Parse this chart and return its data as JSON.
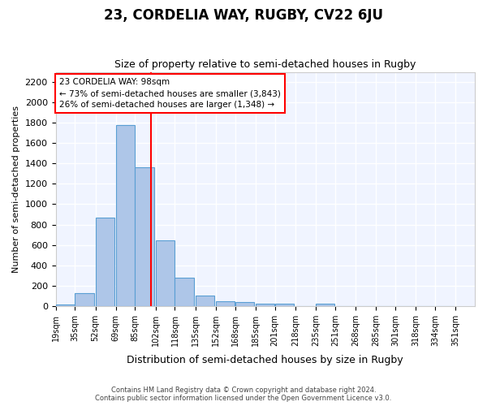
{
  "title": "23, CORDELIA WAY, RUGBY, CV22 6JU",
  "subtitle": "Size of property relative to semi-detached houses in Rugby",
  "xlabel": "Distribution of semi-detached houses by size in Rugby",
  "ylabel": "Number of semi-detached properties",
  "bin_labels": [
    "19sqm",
    "35sqm",
    "52sqm",
    "69sqm",
    "85sqm",
    "102sqm",
    "118sqm",
    "135sqm",
    "152sqm",
    "168sqm",
    "185sqm",
    "201sqm",
    "218sqm",
    "235sqm",
    "251sqm",
    "268sqm",
    "285sqm",
    "301sqm",
    "318sqm",
    "334sqm",
    "351sqm"
  ],
  "bin_edges": [
    19,
    35,
    52,
    69,
    85,
    102,
    118,
    135,
    152,
    168,
    185,
    201,
    218,
    235,
    251,
    268,
    285,
    301,
    318,
    334,
    351
  ],
  "bar_values": [
    15,
    125,
    870,
    1780,
    1360,
    645,
    280,
    100,
    50,
    35,
    25,
    20,
    0,
    20,
    0,
    0,
    0,
    0,
    0,
    0
  ],
  "bar_color": "#aec6e8",
  "bar_edge_color": "#5a9fd4",
  "property_size": 98,
  "property_line_color": "red",
  "annotation_text": "23 CORDELIA WAY: 98sqm\n← 73% of semi-detached houses are smaller (3,843)\n26% of semi-detached houses are larger (1,348) →",
  "annotation_box_color": "white",
  "annotation_box_edge_color": "red",
  "ylim": [
    0,
    2300
  ],
  "yticks": [
    0,
    200,
    400,
    600,
    800,
    1000,
    1200,
    1400,
    1600,
    1800,
    2000,
    2200
  ],
  "background_color": "#f0f4ff",
  "grid_color": "white",
  "footer_line1": "Contains HM Land Registry data © Crown copyright and database right 2024.",
  "footer_line2": "Contains public sector information licensed under the Open Government Licence v3.0."
}
